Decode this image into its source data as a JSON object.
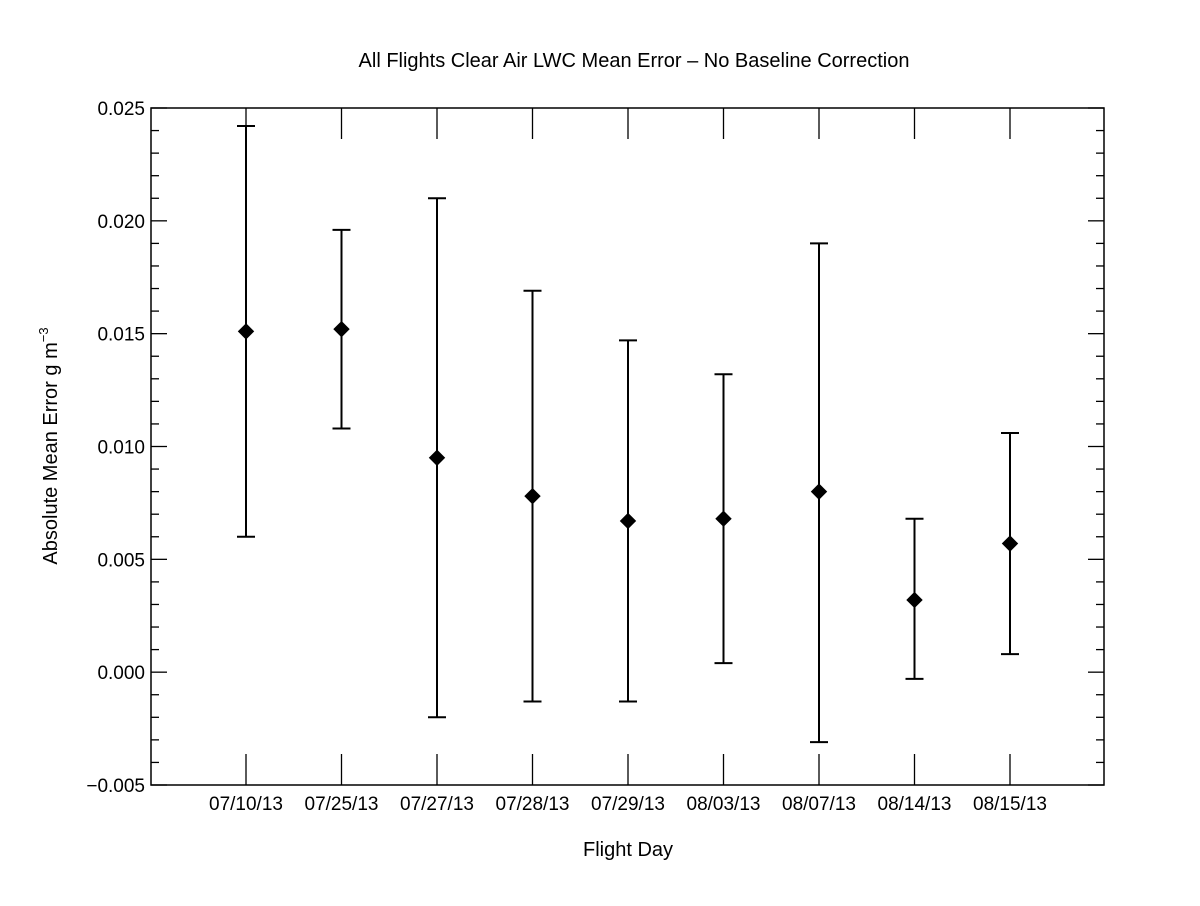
{
  "chart_data": {
    "type": "scatter",
    "title": "All Flights Clear Air LWC Mean Error – No Baseline Correction",
    "xlabel": "Flight Day",
    "ylabel": "Absolute Mean Error g m",
    "ylabel_superscript": "−3",
    "ylim": [
      -0.005,
      0.025
    ],
    "yticks": [
      {
        "value": -0.005,
        "label": "−0.005"
      },
      {
        "value": 0.0,
        "label": "0.000"
      },
      {
        "value": 0.005,
        "label": "0.005"
      },
      {
        "value": 0.01,
        "label": "0.010"
      },
      {
        "value": 0.015,
        "label": "0.015"
      },
      {
        "value": 0.02,
        "label": "0.020"
      },
      {
        "value": 0.025,
        "label": "0.025"
      }
    ],
    "y_minor_ticks_per_major": 5,
    "marker": "diamond",
    "error_bars": true,
    "grid": false,
    "color": "#000000",
    "categories": [
      "07/10/13",
      "07/25/13",
      "07/27/13",
      "07/28/13",
      "07/29/13",
      "08/03/13",
      "08/07/13",
      "08/14/13",
      "08/15/13"
    ],
    "series": [
      {
        "values": [
          0.0151,
          0.0152,
          0.0095,
          0.0078,
          0.0067,
          0.0068,
          0.008,
          0.0032,
          0.0057
        ],
        "error_low": [
          0.006,
          0.0108,
          -0.002,
          -0.0013,
          -0.0013,
          0.0004,
          -0.0031,
          -0.0003,
          0.0008
        ],
        "error_high": [
          0.0242,
          0.0196,
          0.021,
          0.0169,
          0.0147,
          0.0132,
          0.019,
          0.0068,
          0.0106
        ]
      }
    ]
  }
}
